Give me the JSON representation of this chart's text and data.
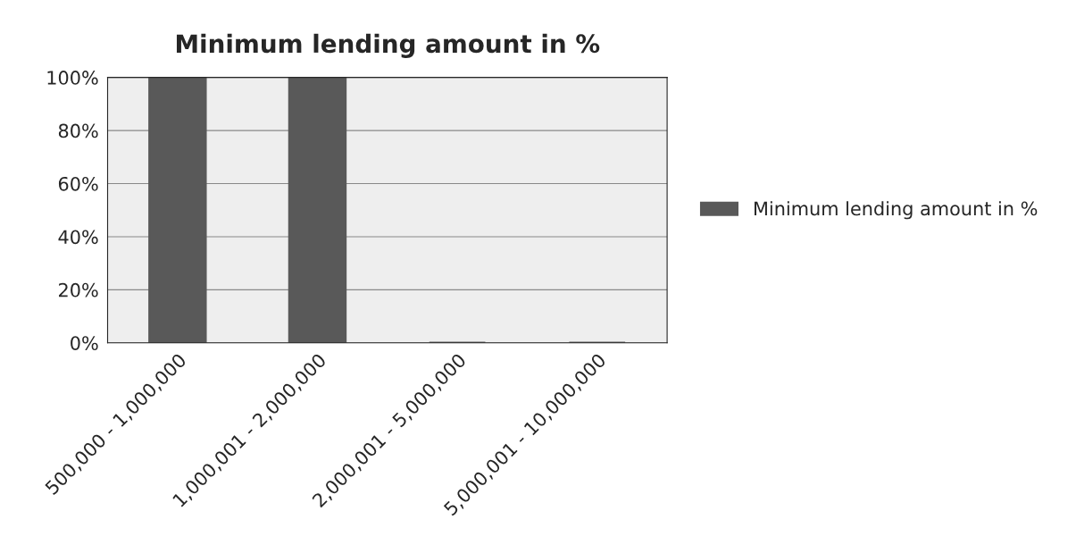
{
  "chart_data": {
    "type": "bar",
    "title": "Minimum lending amount in %",
    "categories": [
      "500,000 - 1,000,000",
      "1,000,001 - 2,000,000",
      "2,000,001 - 5,000,000",
      "5,000,001 - 10,000,000"
    ],
    "series": [
      {
        "name": "Minimum lending amount in %",
        "color": "#595959",
        "values": [
          100,
          100,
          0,
          0
        ]
      }
    ],
    "ylim": [
      0,
      100
    ],
    "yticks": [
      {
        "value": 0,
        "label": "0%"
      },
      {
        "value": 20,
        "label": "20%"
      },
      {
        "value": 40,
        "label": "40%"
      },
      {
        "value": 60,
        "label": "60%"
      },
      {
        "value": 80,
        "label": "80%"
      },
      {
        "value": 100,
        "label": "100%"
      }
    ],
    "grid": "y",
    "legend": "right"
  }
}
